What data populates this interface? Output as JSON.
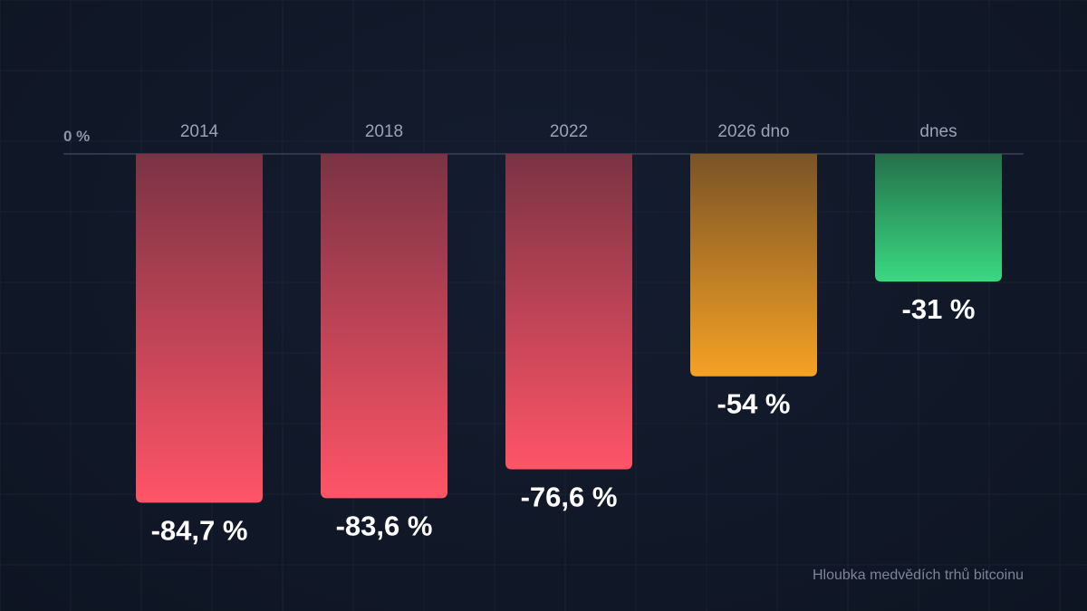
{
  "chart_data": {
    "type": "bar",
    "orientation": "vertical-downward",
    "categories": [
      "2014",
      "2018",
      "2022",
      "2026 dno",
      "dnes"
    ],
    "values": [
      -84.7,
      -83.6,
      -76.6,
      -54,
      -31
    ],
    "value_labels": [
      "-84,7 %",
      "-83,6 %",
      "-76,6 %",
      "-54 %",
      "-31 %"
    ],
    "zero_label": "0 %",
    "caption": "Hloubka medvědích trhů bitcoinu",
    "colors": [
      {
        "top": "#7a3344",
        "bottom": "#ff5467"
      },
      {
        "top": "#7a3344",
        "bottom": "#ff5467"
      },
      {
        "top": "#7a3344",
        "bottom": "#ff5467"
      },
      {
        "top": "#7a5326",
        "bottom": "#f5a224"
      },
      {
        "top": "#24704a",
        "bottom": "#3ad982"
      }
    ],
    "grid": true,
    "axis_color": "#2f384a"
  }
}
